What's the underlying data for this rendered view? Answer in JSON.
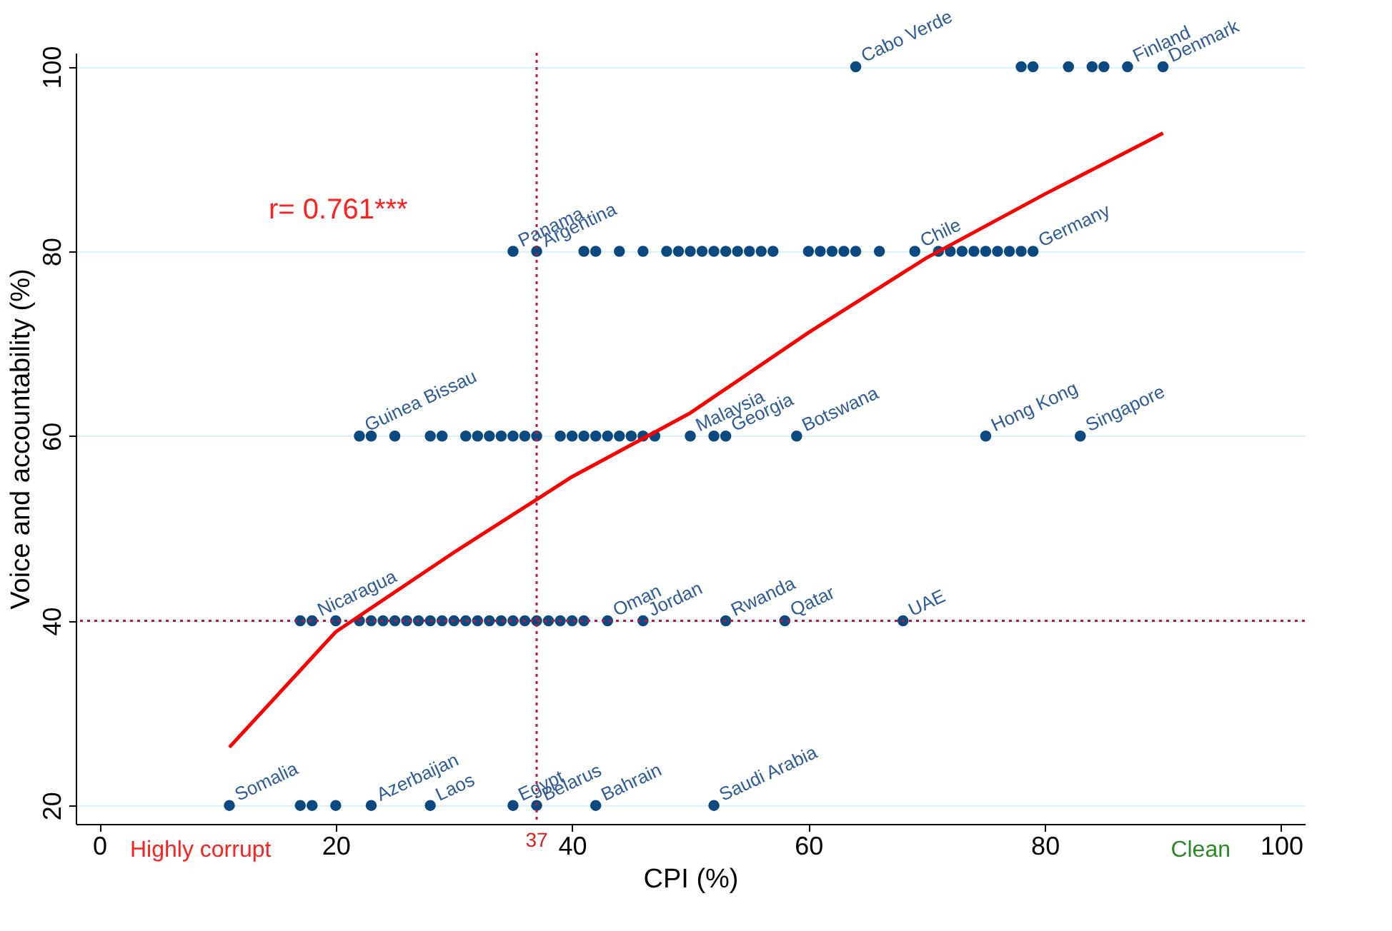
{
  "chart_data": {
    "type": "scatter",
    "xlabel": "CPI (%)",
    "ylabel": "Voice and accountability (%)",
    "xlim": [
      -2,
      102
    ],
    "ylim": [
      18,
      101.5
    ],
    "xticks": [
      0,
      20,
      40,
      60,
      80,
      100
    ],
    "yticks": [
      20,
      40,
      60,
      80,
      100
    ],
    "grid": "y",
    "marker": "circle",
    "series": [
      {
        "color": "#0b4a80",
        "x": [
          11,
          17,
          18,
          20,
          23,
          28,
          35,
          37,
          42,
          52,
          17,
          18,
          20,
          22,
          23,
          24,
          25,
          26,
          27,
          28,
          29,
          30,
          31,
          32,
          33,
          34,
          35,
          36,
          37,
          38,
          39,
          40,
          41,
          43,
          46,
          53,
          58,
          68,
          22,
          23,
          25,
          28,
          29,
          31,
          32,
          33,
          34,
          35,
          36,
          37,
          39,
          40,
          41,
          42,
          43,
          44,
          45,
          46,
          47,
          50,
          52,
          53,
          59,
          75,
          83,
          35,
          37,
          41,
          42,
          44,
          46,
          48,
          49,
          50,
          51,
          52,
          53,
          54,
          55,
          56,
          57,
          60,
          61,
          62,
          63,
          64,
          66,
          69,
          71,
          72,
          73,
          74,
          75,
          76,
          77,
          78,
          79,
          64,
          78,
          79,
          82,
          84,
          85,
          87,
          90
        ],
        "values": [
          20,
          20,
          20,
          20,
          20,
          20,
          20,
          20,
          20,
          20,
          40,
          40,
          40,
          40,
          40,
          40,
          40,
          40,
          40,
          40,
          40,
          40,
          40,
          40,
          40,
          40,
          40,
          40,
          40,
          40,
          40,
          40,
          40,
          40,
          40,
          40,
          40,
          40,
          60,
          60,
          60,
          60,
          60,
          60,
          60,
          60,
          60,
          60,
          60,
          60,
          60,
          60,
          60,
          60,
          60,
          60,
          60,
          60,
          60,
          60,
          60,
          60,
          60,
          60,
          60,
          80,
          80,
          80,
          80,
          80,
          80,
          80,
          80,
          80,
          80,
          80,
          80,
          80,
          80,
          80,
          80,
          80,
          80,
          80,
          80,
          80,
          80,
          80,
          80,
          80,
          80,
          80,
          80,
          80,
          80,
          80,
          80,
          100,
          100,
          100,
          100,
          100,
          100,
          100,
          100
        ]
      },
      {
        "type": "line",
        "marker": "none",
        "color": "#ff0000",
        "x": [
          11,
          20,
          30,
          40,
          50,
          60,
          70,
          80,
          90
        ],
        "values": [
          26.3,
          38.8,
          47.4,
          55.6,
          62.5,
          71.2,
          79.3,
          86.2,
          92.8
        ]
      }
    ],
    "ref_lines": [
      {
        "axis": "x",
        "value": 37,
        "label": "37",
        "color": "#c0143c",
        "line_style": "dotted"
      },
      {
        "axis": "y",
        "value": 40,
        "label": null,
        "color": "#c0143c",
        "line_style": "dotted"
      }
    ],
    "annotations": [
      "r= 0.761***",
      "Highly corrupt",
      "Clean",
      {
        "text": "Somalia",
        "x": 11,
        "y": 20
      },
      {
        "text": "Azerbaijan",
        "x": 23,
        "y": 20
      },
      {
        "text": "Laos",
        "x": 28,
        "y": 20
      },
      {
        "text": "Egypt",
        "x": 35,
        "y": 20
      },
      {
        "text": "Belarus",
        "x": 37,
        "y": 20
      },
      {
        "text": "Bahrain",
        "x": 42,
        "y": 20
      },
      {
        "text": "Saudi Arabia",
        "x": 52,
        "y": 20
      },
      {
        "text": "Nicaragua",
        "x": 18,
        "y": 40
      },
      {
        "text": "Oman",
        "x": 43,
        "y": 40
      },
      {
        "text": "Jordan",
        "x": 46,
        "y": 40
      },
      {
        "text": "Rwanda",
        "x": 53,
        "y": 40
      },
      {
        "text": "Qatar",
        "x": 58,
        "y": 40
      },
      {
        "text": "UAE",
        "x": 68,
        "y": 40
      },
      {
        "text": "Guinea Bissau",
        "x": 22,
        "y": 60
      },
      {
        "text": "Malaysia",
        "x": 50,
        "y": 60
      },
      {
        "text": "Georgia",
        "x": 53,
        "y": 60
      },
      {
        "text": "Botswana",
        "x": 59,
        "y": 60
      },
      {
        "text": "Hong Kong",
        "x": 75,
        "y": 60
      },
      {
        "text": "Singapore",
        "x": 83,
        "y": 60
      },
      {
        "text": "Panama",
        "x": 35,
        "y": 80
      },
      {
        "text": "Argentina",
        "x": 37,
        "y": 80
      },
      {
        "text": "Chile",
        "x": 69,
        "y": 80
      },
      {
        "text": "Germany",
        "x": 79,
        "y": 80
      },
      {
        "text": "Cabo Verde",
        "x": 64,
        "y": 100
      },
      {
        "text": "Finland",
        "x": 87,
        "y": 100
      },
      {
        "text": "Denmark",
        "x": 90,
        "y": 100
      }
    ]
  }
}
